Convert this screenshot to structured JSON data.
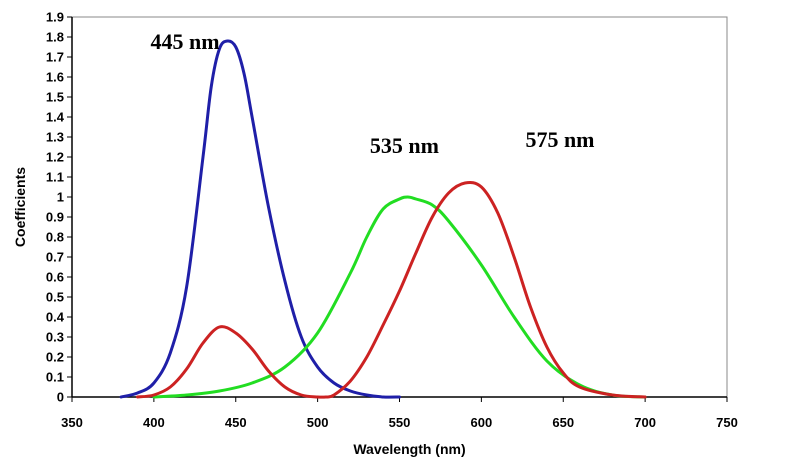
{
  "chart_data": {
    "type": "line",
    "title": "",
    "xlabel": "Wavelength (nm)",
    "ylabel": "Coefficients",
    "xlim": [
      350,
      750
    ],
    "ylim": [
      0,
      1.9
    ],
    "x_ticks": [
      350,
      400,
      450,
      500,
      550,
      600,
      650,
      700,
      750
    ],
    "y_ticks": [
      0,
      0.1,
      0.2,
      0.3,
      0.4,
      0.5,
      0.6,
      0.7,
      0.8,
      0.9,
      1,
      1.1,
      1.2,
      1.3,
      1.4,
      1.5,
      1.6,
      1.7,
      1.8,
      1.9
    ],
    "grid": false,
    "series": [
      {
        "name": "blue",
        "color": "#1f1fa8",
        "x": [
          380,
          390,
          400,
          410,
          420,
          430,
          435,
          440,
          445,
          450,
          455,
          460,
          470,
          480,
          490,
          500,
          510,
          520,
          530,
          540,
          550
        ],
        "y": [
          0.0,
          0.02,
          0.07,
          0.22,
          0.55,
          1.2,
          1.55,
          1.74,
          1.78,
          1.75,
          1.62,
          1.4,
          0.95,
          0.58,
          0.3,
          0.15,
          0.07,
          0.03,
          0.01,
          0.0,
          0.0
        ]
      },
      {
        "name": "green",
        "color": "#22dd22",
        "x": [
          400,
          420,
          440,
          460,
          480,
          500,
          520,
          530,
          540,
          550,
          555,
          560,
          570,
          580,
          600,
          620,
          640,
          660,
          680,
          700
        ],
        "y": [
          0.0,
          0.01,
          0.03,
          0.07,
          0.15,
          0.32,
          0.62,
          0.8,
          0.94,
          0.99,
          1.0,
          0.99,
          0.96,
          0.88,
          0.66,
          0.4,
          0.18,
          0.06,
          0.01,
          0.0
        ]
      },
      {
        "name": "red",
        "color": "#cc2222",
        "x": [
          390,
          400,
          410,
          420,
          430,
          440,
          450,
          460,
          470,
          480,
          490,
          500,
          505,
          510,
          520,
          530,
          540,
          550,
          560,
          570,
          580,
          590,
          600,
          610,
          620,
          630,
          640,
          650,
          660,
          680,
          700
        ],
        "y": [
          0.0,
          0.01,
          0.05,
          0.14,
          0.27,
          0.35,
          0.32,
          0.24,
          0.13,
          0.05,
          0.01,
          0.0,
          0.0,
          0.01,
          0.08,
          0.2,
          0.36,
          0.53,
          0.72,
          0.9,
          1.02,
          1.07,
          1.05,
          0.92,
          0.7,
          0.45,
          0.25,
          0.12,
          0.05,
          0.01,
          0.0
        ]
      }
    ],
    "annotations": [
      {
        "text": "445 nm",
        "x": 419,
        "y": 1.74
      },
      {
        "text": "535 nm",
        "x": 553,
        "y": 1.22
      },
      {
        "text": "575 nm",
        "x": 648,
        "y": 1.25
      }
    ]
  }
}
